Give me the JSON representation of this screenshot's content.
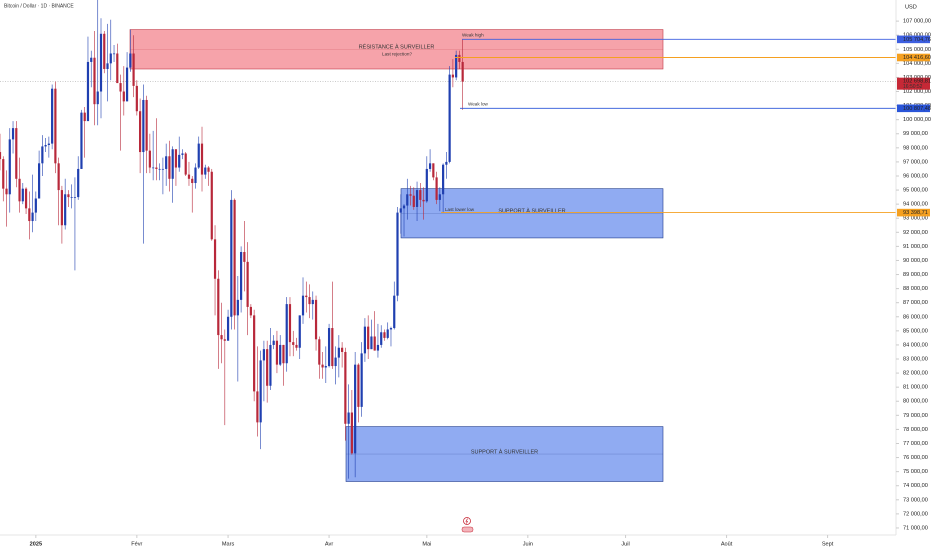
{
  "chart_data": {
    "type": "candlestick",
    "title": "Bitcoin / Dollar · 1D · BINANCE",
    "currency": "USD",
    "up_color": "#1f3fb0",
    "down_color": "#b8283a",
    "grid": false,
    "xlim": [
      -11,
      264
    ],
    "ylim": [
      70500,
      108500
    ],
    "xticks": [
      {
        "value": 0,
        "label": "2025"
      },
      {
        "value": 31,
        "label": "Févr"
      },
      {
        "value": 59,
        "label": "Mars"
      },
      {
        "value": 90,
        "label": "Avr"
      },
      {
        "value": 120,
        "label": "Mai"
      },
      {
        "value": 151,
        "label": "Juin"
      },
      {
        "value": 181,
        "label": "Juil"
      },
      {
        "value": 212,
        "label": "Août"
      },
      {
        "value": 243,
        "label": "Sept"
      }
    ],
    "yticks": [
      {
        "value": 71000,
        "label": "71 000,00"
      },
      {
        "value": 72000,
        "label": "72 000,00"
      },
      {
        "value": 73000,
        "label": "73 000,00"
      },
      {
        "value": 74000,
        "label": "74 000,00"
      },
      {
        "value": 75000,
        "label": "75 000,00"
      },
      {
        "value": 76000,
        "label": "76 000,00"
      },
      {
        "value": 77000,
        "label": "77 000,00"
      },
      {
        "value": 78000,
        "label": "78 000,00"
      },
      {
        "value": 79000,
        "label": "79 000,00"
      },
      {
        "value": 80000,
        "label": "80 000,00"
      },
      {
        "value": 81000,
        "label": "81 000,00"
      },
      {
        "value": 82000,
        "label": "82 000,00"
      },
      {
        "value": 83000,
        "label": "83 000,00"
      },
      {
        "value": 84000,
        "label": "84 000,00"
      },
      {
        "value": 85000,
        "label": "85 000,00"
      },
      {
        "value": 86000,
        "label": "86 000,00"
      },
      {
        "value": 87000,
        "label": "87 000,00"
      },
      {
        "value": 88000,
        "label": "88 000,00"
      },
      {
        "value": 89000,
        "label": "89 000,00"
      },
      {
        "value": 90000,
        "label": "90 000,00"
      },
      {
        "value": 91000,
        "label": "91 000,00"
      },
      {
        "value": 92000,
        "label": "92 000,00"
      },
      {
        "value": 93000,
        "label": "93 000,00"
      },
      {
        "value": 94000,
        "label": "94 000,00"
      },
      {
        "value": 95000,
        "label": "95 000,00"
      },
      {
        "value": 96000,
        "label": "96 000,00"
      },
      {
        "value": 97000,
        "label": "97 000,00"
      },
      {
        "value": 98000,
        "label": "98 000,00"
      },
      {
        "value": 99000,
        "label": "99 000,00"
      },
      {
        "value": 100000,
        "label": "100 000,00"
      },
      {
        "value": 101000,
        "label": "101 000,00"
      },
      {
        "value": 102000,
        "label": "102 000,00"
      },
      {
        "value": 103000,
        "label": "103 000,00"
      },
      {
        "value": 104000,
        "label": "104 000,00"
      },
      {
        "value": 105000,
        "label": "105 000,00"
      },
      {
        "value": 106000,
        "label": "106 000,00"
      },
      {
        "value": 107000,
        "label": "107 000,00"
      }
    ],
    "x": [
      -11,
      -10,
      -9,
      -8,
      -7,
      -6,
      -5,
      -4,
      -3,
      -2,
      -1,
      0,
      1,
      2,
      3,
      4,
      5,
      6,
      7,
      8,
      9,
      10,
      11,
      12,
      13,
      14,
      15,
      16,
      17,
      18,
      19,
      20,
      21,
      22,
      23,
      24,
      25,
      26,
      27,
      28,
      29,
      30,
      31,
      32,
      33,
      34,
      35,
      36,
      37,
      38,
      39,
      40,
      41,
      42,
      43,
      44,
      45,
      46,
      47,
      48,
      49,
      50,
      51,
      52,
      53,
      54,
      55,
      56,
      57,
      58,
      59,
      60,
      61,
      62,
      63,
      64,
      65,
      66,
      67,
      68,
      69,
      70,
      71,
      72,
      73,
      74,
      75,
      76,
      77,
      78,
      79,
      80,
      81,
      82,
      83,
      84,
      85,
      86,
      87,
      88,
      89,
      90,
      91,
      92,
      93,
      94,
      95,
      96,
      97,
      98,
      99,
      100,
      101,
      102,
      103,
      104,
      105,
      106,
      107,
      108,
      109,
      110,
      111,
      112,
      113,
      114,
      115,
      116,
      117,
      118,
      119,
      120,
      121,
      122,
      123,
      124,
      125,
      126,
      127,
      128,
      129,
      130,
      131
    ],
    "open": [
      97700,
      97200,
      95100,
      94700,
      98600,
      99400,
      95800,
      94200,
      95100,
      93700,
      92800,
      93400,
      94400,
      96900,
      98100,
      98200,
      98300,
      102200,
      96900,
      95000,
      92500,
      94700,
      94500,
      94500,
      94500,
      96500,
      100500,
      99900,
      104100,
      104400,
      101100,
      102000,
      106100,
      103600,
      104000,
      104700,
      104700,
      102600,
      102000,
      101300,
      103700,
      104700,
      102400,
      100600,
      97700,
      101400,
      97800,
      96600,
      96600,
      96500,
      96500,
      96500,
      97400,
      95800,
      97900,
      96600,
      97500,
      97600,
      96100,
      95800,
      95500,
      96600,
      98300,
      96100,
      96600,
      96300,
      91500,
      88700,
      84700,
      84400,
      84300,
      86000,
      94300,
      86100,
      87200,
      90600,
      89900,
      86700,
      86100,
      80700,
      78500,
      82900,
      83700,
      81100,
      84000,
      84300,
      82600,
      84000,
      82700,
      86900,
      84200,
      84000,
      83800,
      86100,
      87500,
      87400,
      86900,
      87200,
      84400,
      82600,
      82400,
      82500,
      85200,
      82500,
      83100,
      83800,
      83500,
      78400,
      79200,
      76300,
      82600,
      79600,
      83400,
      85300,
      83700,
      84600,
      83600,
      84000,
      84900,
      84500,
      85100,
      85200,
      87500,
      93400,
      93700,
      93900,
      94700,
      94600,
      93800,
      95000,
      94300,
      94200,
      96500,
      96900,
      95900,
      94300,
      94700,
      96800,
      97000,
      103200,
      103000,
      104600,
      104100
    ],
    "high": [
      99000,
      97400,
      96400,
      99400,
      99900,
      99900,
      97300,
      95500,
      95200,
      94900,
      96100,
      94900,
      97800,
      98900,
      98700,
      98800,
      102500,
      102700,
      97300,
      95300,
      95800,
      95000,
      95400,
      95900,
      97400,
      100700,
      100900,
      105900,
      104900,
      106300,
      109600,
      107200,
      106300,
      106800,
      107100,
      105300,
      105400,
      103200,
      103800,
      104800,
      106400,
      106000,
      102800,
      101500,
      102500,
      101700,
      99000,
      99200,
      100100,
      96900,
      97300,
      98300,
      98500,
      98100,
      97900,
      98800,
      97900,
      97700,
      97000,
      96000,
      96900,
      98800,
      99500,
      96800,
      96700,
      96500,
      92500,
      89300,
      87000,
      85100,
      86500,
      95000,
      94400,
      88900,
      91000,
      92800,
      91300,
      86900,
      86500,
      83900,
      83600,
      84300,
      84300,
      85200,
      84700,
      85000,
      84700,
      84000,
      87400,
      87400,
      85000,
      84500,
      86100,
      88800,
      88500,
      88300,
      87800,
      87500,
      84600,
      83500,
      83900,
      85500,
      88500,
      83900,
      84700,
      84200,
      83800,
      81200,
      80800,
      83500,
      82700,
      84200,
      85900,
      86100,
      85800,
      86400,
      85500,
      85400,
      85100,
      85600,
      85300,
      88500,
      93800,
      94700,
      94000,
      95800,
      95300,
      95200,
      95600,
      95500,
      95200,
      97400,
      97900,
      96900,
      96300,
      95200,
      96900,
      97700,
      103800,
      104300,
      104900,
      104900,
      105700
    ],
    "low": [
      96400,
      94200,
      92400,
      93400,
      97600,
      95200,
      93400,
      94000,
      93300,
      91500,
      92000,
      92800,
      94400,
      96000,
      97700,
      97300,
      97900,
      96200,
      92500,
      91200,
      92200,
      93800,
      93700,
      89300,
      94300,
      96500,
      97300,
      99900,
      102300,
      99600,
      99600,
      100100,
      103300,
      101300,
      102800,
      104100,
      102600,
      97800,
      100300,
      101300,
      103400,
      101600,
      100300,
      96200,
      91200,
      96200,
      96200,
      95700,
      95700,
      95700,
      94700,
      95300,
      94900,
      94100,
      95300,
      96300,
      97200,
      96000,
      95300,
      93400,
      95100,
      96500,
      94900,
      95800,
      95300,
      91400,
      86100,
      82300,
      82700,
      78300,
      84300,
      85100,
      85100,
      81400,
      86300,
      87800,
      84700,
      85900,
      80000,
      77500,
      76600,
      80000,
      79900,
      80800,
      83700,
      82000,
      82500,
      81100,
      82100,
      83200,
      83200,
      83600,
      83000,
      85500,
      86300,
      85900,
      85800,
      83600,
      81600,
      81600,
      81300,
      82400,
      82300,
      81200,
      81700,
      82400,
      77200,
      74500,
      76200,
      74600,
      78500,
      78900,
      82800,
      83000,
      83700,
      83600,
      83100,
      83800,
      84300,
      84400,
      83900,
      85100,
      87100,
      91900,
      91700,
      92900,
      93900,
      93600,
      92800,
      93800,
      92900,
      94100,
      96300,
      95700,
      94000,
      93500,
      93400,
      95800,
      96900,
      102300,
      102800,
      103600,
      100700
    ],
    "close": [
      97200,
      95100,
      94700,
      98600,
      99400,
      95800,
      94200,
      95100,
      93700,
      92800,
      93400,
      94400,
      96900,
      98100,
      98200,
      98300,
      102200,
      96900,
      95000,
      92500,
      94700,
      94500,
      94500,
      94500,
      96500,
      100500,
      99900,
      104100,
      104400,
      101100,
      102000,
      106100,
      103600,
      104000,
      104700,
      104700,
      102600,
      102000,
      101300,
      103700,
      104700,
      102400,
      100600,
      97700,
      101400,
      97800,
      96600,
      96600,
      96500,
      96500,
      96500,
      97400,
      95800,
      97900,
      96600,
      97500,
      97600,
      96100,
      95800,
      95500,
      96600,
      98300,
      96100,
      96600,
      96300,
      91500,
      88700,
      84700,
      84400,
      84300,
      86000,
      94300,
      86100,
      87200,
      90600,
      89900,
      86700,
      86100,
      80700,
      78500,
      82900,
      83700,
      81100,
      84000,
      84300,
      82600,
      84000,
      82700,
      86900,
      84200,
      84000,
      83800,
      86100,
      87500,
      87400,
      86900,
      87200,
      84400,
      82600,
      82400,
      82500,
      85200,
      82500,
      83100,
      83800,
      83500,
      78400,
      79200,
      76300,
      82600,
      79600,
      83400,
      85300,
      83700,
      84600,
      83600,
      84000,
      84900,
      84500,
      85100,
      85200,
      87500,
      93400,
      93700,
      93900,
      94700,
      94600,
      93800,
      95000,
      94300,
      94200,
      96500,
      96900,
      95900,
      94300,
      94700,
      96800,
      97000,
      103200,
      103000,
      104600,
      104100,
      102700
    ],
    "zones": [
      {
        "label": "RÉSISTANCE À SURVEILLER",
        "top": 106400,
        "bottom": 103600,
        "color": "#f4939b",
        "border": "#c23a48"
      },
      {
        "label": "SUPPORT À SURVEILLER",
        "top": 95100,
        "bottom": 91600,
        "color": "#7d9cf0",
        "border": "#1e3a8a"
      },
      {
        "label": "SUPPORT À SURVEILLER",
        "top": 78200,
        "bottom": 74300,
        "color": "#7d9cf0",
        "border": "#1e3a8a"
      }
    ],
    "levels": [
      {
        "name": "Weak high",
        "value": 105704.76,
        "value_label": "105 704,76",
        "color": "#3d5fe0"
      },
      {
        "name": "Last rejection?",
        "value": 104416.6,
        "value_label": "104 416,60",
        "color": "#f5a020"
      },
      {
        "name": "Weak low",
        "value": 100807.48,
        "value_label": "100 807,48",
        "color": "#2a55d8"
      },
      {
        "name": "Last lower low",
        "value": 93398.71,
        "value_label": "93 398,71",
        "color": "#f5a020"
      }
    ],
    "last_price": {
      "value": 102698.81,
      "label": "102 698,81",
      "countdown": "16:50:52",
      "color": "#c62836"
    }
  }
}
